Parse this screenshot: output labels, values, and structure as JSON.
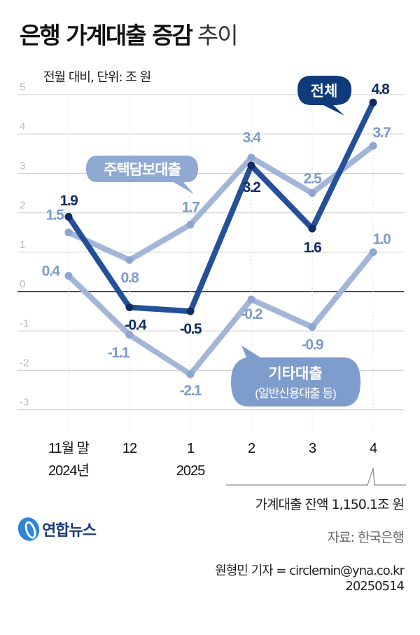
{
  "header": {
    "title_bold": "은행 가계대출 증감",
    "title_light": "추이",
    "subtitle": "전월 대비, 단위: 조 원"
  },
  "chart_data": {
    "type": "line",
    "title": "은행 가계대출 증감 추이",
    "ylabel": "전월 대비, 단위: 조 원",
    "categories": [
      "11월 말",
      "12",
      "1",
      "2",
      "3",
      "4"
    ],
    "category_sublabels": [
      "2024년",
      "",
      "2025",
      "",
      "",
      ""
    ],
    "yticks": [
      "5",
      "4",
      "3",
      "2",
      "1",
      "0",
      "-1",
      "-2",
      "-3"
    ],
    "ylim": [
      -3,
      5
    ],
    "grid": true,
    "series": [
      {
        "name": "주택담보대출",
        "values": [
          1.5,
          0.8,
          1.7,
          3.4,
          2.5,
          3.7
        ],
        "labels": [
          "1.5",
          "0.8",
          "1.7",
          "3.4",
          "2.5",
          "3.7"
        ],
        "color": "#a3b6d8",
        "label_color": "#7d9bcb"
      },
      {
        "name": "기타대출",
        "sub": "(일반신용대출 등)",
        "values": [
          0.4,
          -1.1,
          -2.1,
          -0.2,
          -0.9,
          1.0
        ],
        "labels": [
          "0.4",
          "-1.1",
          "-2.1",
          "-0.2",
          "-0.9",
          "1.0"
        ],
        "color": "#a3b6d8",
        "label_color": "#7d9bcb"
      },
      {
        "name": "전체",
        "values": [
          1.9,
          -0.4,
          -0.5,
          3.2,
          1.6,
          4.8
        ],
        "labels": [
          "1.9",
          "-0.4",
          "-0.5",
          "3.2",
          "1.6",
          "4.8"
        ],
        "color": "#24509a",
        "label_color": "#0f2c62"
      }
    ],
    "annotation": "가계대출 잔액 1,150.1조 원"
  },
  "footer": {
    "balance_note": "가계대출 잔액 1,150.1조 원",
    "source": "자료: 한국은행",
    "logo": "연합뉴스",
    "credit": "원형민 기자 = circlemin@yna.co.kr",
    "date": "20250514"
  }
}
